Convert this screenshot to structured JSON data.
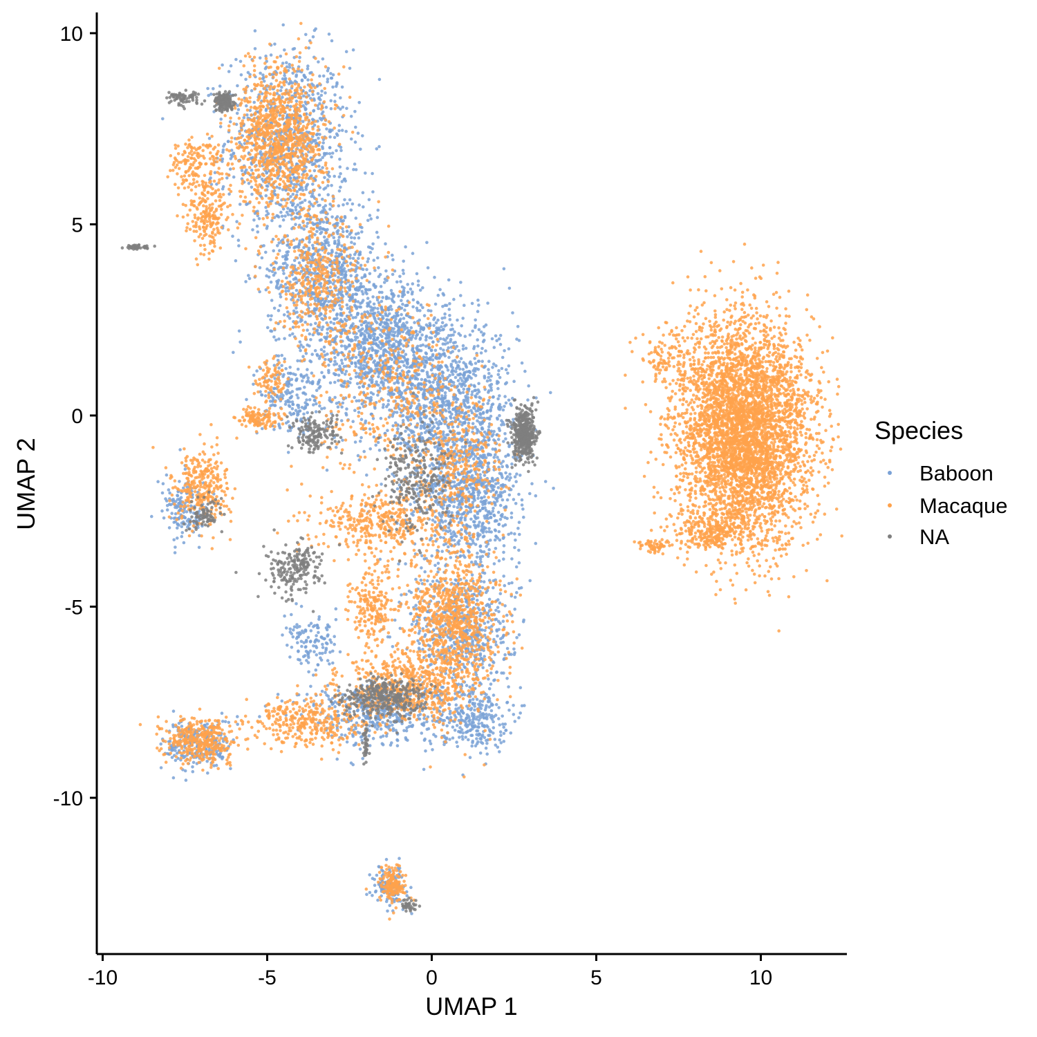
{
  "chart_data": {
    "type": "scatter",
    "title": "",
    "xlabel": "UMAP 1",
    "ylabel": "UMAP 2",
    "xlim": [
      -10.2,
      12.5
    ],
    "ylim": [
      -14,
      10.5
    ],
    "x_ticks": [
      -10,
      -5,
      0,
      5,
      10
    ],
    "y_ticks": [
      10,
      5,
      0,
      -5,
      -10
    ],
    "x_tick_labels": [
      "-10",
      "-5",
      "0",
      "5",
      "10"
    ],
    "y_tick_labels": [
      "10",
      "5",
      "0",
      "-5",
      "-10"
    ],
    "grid": false,
    "legend": {
      "title": "Species",
      "position": "right",
      "entries": [
        "Baboon",
        "Macaque",
        "NA"
      ]
    },
    "series": [
      {
        "name": "Baboon",
        "color": "#7aa2d6",
        "regions": [
          {
            "cx": -4.4,
            "cy": 7.2,
            "sx": 1.1,
            "sy": 1.4,
            "n": 900
          },
          {
            "cx": -3.3,
            "cy": 3.8,
            "sx": 1.0,
            "sy": 1.2,
            "n": 800
          },
          {
            "cx": -1.5,
            "cy": 1.8,
            "sx": 1.2,
            "sy": 1.1,
            "n": 1000
          },
          {
            "cx": 0.5,
            "cy": 0.2,
            "sx": 1.2,
            "sy": 1.3,
            "n": 1100
          },
          {
            "cx": 1.2,
            "cy": -2.2,
            "sx": 0.9,
            "sy": 1.0,
            "n": 700
          },
          {
            "cx": 0.9,
            "cy": -5.6,
            "sx": 0.9,
            "sy": 1.0,
            "n": 600
          },
          {
            "cx": 1.3,
            "cy": -7.9,
            "sx": 0.6,
            "sy": 0.5,
            "n": 250
          },
          {
            "cx": -1.5,
            "cy": -7.8,
            "sx": 1.5,
            "sy": 0.5,
            "n": 450
          },
          {
            "cx": -7.1,
            "cy": -8.6,
            "sx": 0.6,
            "sy": 0.4,
            "n": 250
          },
          {
            "cx": -7.5,
            "cy": -2.5,
            "sx": 0.4,
            "sy": 0.5,
            "n": 150
          },
          {
            "cx": -4.3,
            "cy": 0.5,
            "sx": 0.6,
            "sy": 0.6,
            "n": 200
          },
          {
            "cx": -1.3,
            "cy": -12.3,
            "sx": 0.3,
            "sy": 0.3,
            "n": 120
          },
          {
            "cx": -3.6,
            "cy": -6.0,
            "sx": 0.5,
            "sy": 0.4,
            "n": 120
          }
        ]
      },
      {
        "name": "Macaque",
        "color": "#ffa24b",
        "regions": [
          {
            "cx": -4.6,
            "cy": 7.3,
            "sx": 0.8,
            "sy": 1.1,
            "n": 1000
          },
          {
            "cx": -6.8,
            "cy": 5.2,
            "sx": 0.4,
            "sy": 0.6,
            "n": 200
          },
          {
            "cx": -7.2,
            "cy": 6.6,
            "sx": 0.5,
            "sy": 0.4,
            "n": 150
          },
          {
            "cx": -3.5,
            "cy": 3.5,
            "sx": 0.8,
            "sy": 1.0,
            "n": 400
          },
          {
            "cx": -1.3,
            "cy": 0.8,
            "sx": 1.2,
            "sy": 1.3,
            "n": 400
          },
          {
            "cx": 0.9,
            "cy": -1.2,
            "sx": 0.7,
            "sy": 1.0,
            "n": 300
          },
          {
            "cx": -1.5,
            "cy": -2.8,
            "sx": 1.2,
            "sy": 0.5,
            "n": 400
          },
          {
            "cx": 0.7,
            "cy": -5.4,
            "sx": 0.8,
            "sy": 1.2,
            "n": 900
          },
          {
            "cx": -1.8,
            "cy": -5.0,
            "sx": 0.4,
            "sy": 0.6,
            "n": 200
          },
          {
            "cx": -0.8,
            "cy": -7.1,
            "sx": 1.1,
            "sy": 0.5,
            "n": 500
          },
          {
            "cx": -3.8,
            "cy": -8.0,
            "sx": 1.1,
            "sy": 0.4,
            "n": 350
          },
          {
            "cx": -7.0,
            "cy": -8.5,
            "sx": 0.6,
            "sy": 0.35,
            "n": 350
          },
          {
            "cx": -7.0,
            "cy": -1.9,
            "sx": 0.5,
            "sy": 0.6,
            "n": 300
          },
          {
            "cx": -5.3,
            "cy": -0.1,
            "sx": 0.4,
            "sy": 0.2,
            "n": 120
          },
          {
            "cx": -4.9,
            "cy": 0.9,
            "sx": 0.3,
            "sy": 0.3,
            "n": 80
          },
          {
            "cx": -1.2,
            "cy": -12.3,
            "sx": 0.25,
            "sy": 0.3,
            "n": 150
          },
          {
            "cx": 9.5,
            "cy": -0.4,
            "sx": 1.2,
            "sy": 1.7,
            "n": 4200
          },
          {
            "cx": 8.5,
            "cy": -3.0,
            "sx": 0.7,
            "sy": 0.3,
            "n": 250
          },
          {
            "cx": 6.7,
            "cy": -3.4,
            "sx": 0.3,
            "sy": 0.1,
            "n": 60
          },
          {
            "cx": 7.2,
            "cy": 1.5,
            "sx": 0.5,
            "sy": 0.5,
            "n": 100
          }
        ]
      },
      {
        "name": "NA",
        "color": "#7f7f7f",
        "regions": [
          {
            "cx": 2.8,
            "cy": -0.5,
            "sx": 0.2,
            "sy": 0.4,
            "n": 450
          },
          {
            "cx": -6.3,
            "cy": 8.2,
            "sx": 0.2,
            "sy": 0.15,
            "n": 150
          },
          {
            "cx": -7.5,
            "cy": 8.3,
            "sx": 0.3,
            "sy": 0.12,
            "n": 70
          },
          {
            "cx": -8.9,
            "cy": 4.4,
            "sx": 0.25,
            "sy": 0.04,
            "n": 40
          },
          {
            "cx": -1.5,
            "cy": -7.4,
            "sx": 0.7,
            "sy": 0.3,
            "n": 350
          },
          {
            "cx": -4.2,
            "cy": -4.0,
            "sx": 0.5,
            "sy": 0.4,
            "n": 200
          },
          {
            "cx": -0.5,
            "cy": -1.8,
            "sx": 0.6,
            "sy": 0.9,
            "n": 250
          },
          {
            "cx": -3.6,
            "cy": -0.5,
            "sx": 0.4,
            "sy": 0.3,
            "n": 150
          },
          {
            "cx": -6.9,
            "cy": -2.6,
            "sx": 0.3,
            "sy": 0.3,
            "n": 80
          },
          {
            "cx": -2.0,
            "cy": -8.6,
            "sx": 0.05,
            "sy": 0.3,
            "n": 40
          },
          {
            "cx": -0.7,
            "cy": -12.8,
            "sx": 0.15,
            "sy": 0.1,
            "n": 40
          }
        ]
      }
    ]
  }
}
